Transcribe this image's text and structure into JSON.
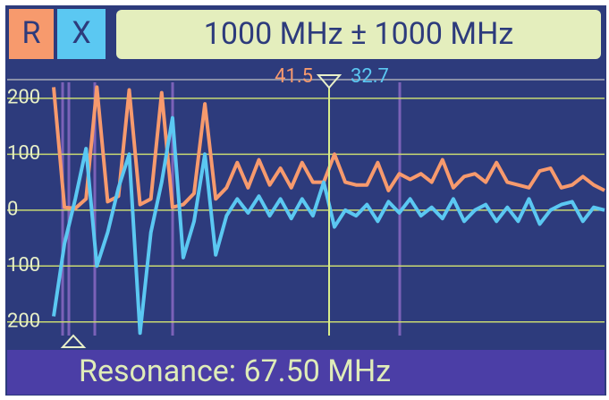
{
  "chart_data": {
    "type": "line",
    "header": {
      "range": "1000 MHz ± 1000 MHz"
    },
    "footer": "Resonance: 67.50 MHz",
    "marker": {
      "r": 41.5,
      "x": 32.7
    },
    "series": [
      {
        "name": "R",
        "color": "#f79a6d",
        "values": [
          220,
          5,
          3,
          20,
          220,
          15,
          25,
          215,
          10,
          20,
          210,
          5,
          10,
          30,
          190,
          20,
          40,
          85,
          40,
          90,
          45,
          75,
          40,
          85,
          50,
          50,
          100,
          50,
          45,
          45,
          85,
          35,
          65,
          55,
          65,
          50,
          90,
          40,
          60,
          65,
          50,
          85,
          50,
          45,
          40,
          70,
          75,
          40,
          45,
          60,
          45,
          35
        ]
      },
      {
        "name": "X",
        "color": "#5bc8f2",
        "values": [
          -190,
          -60,
          20,
          110,
          -100,
          -40,
          40,
          100,
          -220,
          -40,
          50,
          165,
          -85,
          -20,
          100,
          -80,
          -10,
          20,
          -5,
          25,
          -10,
          20,
          -15,
          20,
          -10,
          50,
          -30,
          0,
          -10,
          10,
          -20,
          15,
          -5,
          20,
          -10,
          5,
          -15,
          20,
          -20,
          0,
          10,
          -20,
          5,
          -20,
          20,
          -25,
          0,
          10,
          15,
          -20,
          5,
          0
        ]
      }
    ],
    "ylim": [
      -250,
      235
    ],
    "yticks": [
      {
        "value": -200,
        "label": "200"
      },
      {
        "value": -100,
        "label": "100"
      },
      0,
      100,
      200
    ],
    "grid": true
  }
}
